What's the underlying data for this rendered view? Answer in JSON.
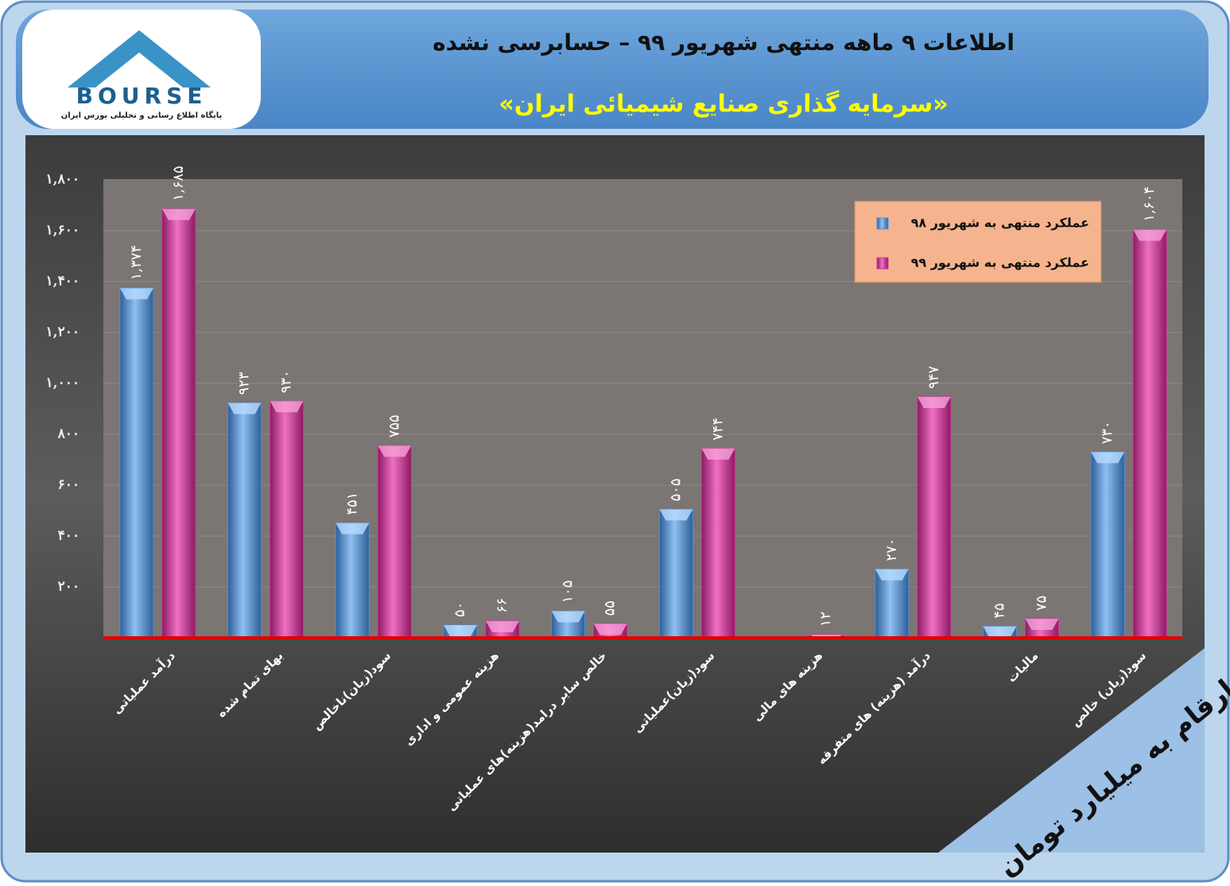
{
  "chart_data": {
    "type": "bar",
    "title": "اطلاعات ۹ ماهه منتهی شهریور ۹۹ – حسابرسی نشده",
    "subtitle": "«سرمایه گذاری صنایع شیمیائی ایران»",
    "categories": [
      "درآمد عملیاتی",
      "بهای تمام شده",
      "سود(زیان)ناخالص",
      "هزینه عمومی و اداری",
      "خالص سایر درامد(هزینه)های عملیاتی",
      "سود(زیان)عملیاتی",
      "هزینه های مالی",
      "درآمد (هزینه) های متفرقه",
      "مالیات",
      "سود(زیان) خالص"
    ],
    "series": [
      {
        "name": "عملکرد منتهی به شهریور ۹۸",
        "color": "#4f8fd6",
        "values": [
          1374,
          923,
          451,
          50,
          105,
          505,
          null,
          270,
          45,
          730
        ],
        "value_labels": [
          "۱,۳۷۴",
          "۹۲۳",
          "۴۵۱",
          "۵۰",
          "۱۰۵",
          "۵۰۵",
          null,
          "۲۷۰",
          "۴۵",
          "۷۳۰"
        ]
      },
      {
        "name": "عملکرد منتهی به شهریور ۹۹",
        "color": "#d6329a",
        "values": [
          1685,
          930,
          755,
          66,
          55,
          744,
          12,
          947,
          75,
          1604
        ],
        "value_labels": [
          "۱,۶۸۵",
          "۹۳۰",
          "۷۵۵",
          "۶۶",
          "۵۵",
          "۷۴۴",
          "۱۲",
          "۹۴۷",
          "۷۵",
          "۱,۶۰۴"
        ]
      }
    ],
    "ylim": [
      0,
      1800
    ],
    "yticks": [
      {
        "value": 200,
        "label": "۲۰۰"
      },
      {
        "value": 400,
        "label": "۴۰۰"
      },
      {
        "value": 600,
        "label": "۶۰۰"
      },
      {
        "value": 800,
        "label": "۸۰۰"
      },
      {
        "value": 1000,
        "label": "۱,۰۰۰"
      },
      {
        "value": 1200,
        "label": "۱,۲۰۰"
      },
      {
        "value": 1400,
        "label": "۱,۴۰۰"
      },
      {
        "value": 1600,
        "label": "۱,۶۰۰"
      },
      {
        "value": 1800,
        "label": "۱,۸۰۰"
      }
    ],
    "grid": true,
    "legend": "top-right",
    "note": "ارقام به میلیارد تومان"
  },
  "logo": {
    "text": "BOURSE",
    "tagline": "پایگاه اطلاع رسانی و تحلیلی بورس ایران"
  }
}
